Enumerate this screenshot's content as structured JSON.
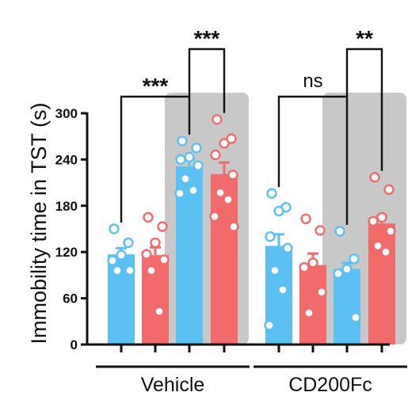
{
  "chart_data": {
    "type": "bar",
    "ylabel": "Immobility  time in TST (s)",
    "ylim": [
      0,
      300
    ],
    "yticks": [
      0,
      60,
      120,
      180,
      240,
      300
    ],
    "groups": [
      "Vehicle",
      "CD200Fc"
    ],
    "colors": {
      "blue": "#5bc0f2",
      "red": "#f26a6a",
      "shade": "#c8c8c8"
    },
    "bars": [
      {
        "group": 0,
        "color": "blue",
        "shaded": false,
        "mean": 117,
        "sem": 8,
        "points": [
          150,
          132,
          116,
          109,
          96,
          96
        ]
      },
      {
        "group": 0,
        "color": "red",
        "shaded": false,
        "mean": 116,
        "sem": 10,
        "points": [
          165,
          153,
          132,
          117,
          110,
          96,
          43
        ]
      },
      {
        "group": 0,
        "color": "blue",
        "shaded": true,
        "mean": 231,
        "sem": 9,
        "points": [
          264,
          255,
          243,
          240,
          232,
          215,
          200,
          196
        ]
      },
      {
        "group": 0,
        "color": "red",
        "shaded": true,
        "mean": 221,
        "sem": 15,
        "points": [
          292,
          267,
          261,
          246,
          220,
          197,
          188,
          166,
          153
        ]
      },
      {
        "group": 1,
        "color": "blue",
        "shaded": false,
        "mean": 128,
        "sem": 15,
        "points": [
          196,
          178,
          173,
          140,
          125,
          96,
          71,
          25
        ]
      },
      {
        "group": 1,
        "color": "red",
        "shaded": false,
        "mean": 103,
        "sem": 15,
        "points": [
          163,
          148,
          106,
          100,
          68,
          41
        ]
      },
      {
        "group": 1,
        "color": "blue",
        "shaded": true,
        "mean": 98,
        "sem": 8,
        "points": [
          147,
          111,
          98,
          92,
          35
        ]
      },
      {
        "group": 1,
        "color": "red",
        "shaded": true,
        "mean": 157,
        "sem": 10,
        "points": [
          217,
          201,
          165,
          160,
          147,
          128,
          120
        ]
      }
    ],
    "comparisons": [
      {
        "from_bar": 0,
        "to_bar": 2,
        "label": "***",
        "level": 0
      },
      {
        "from_bar": 2,
        "to_bar": 3,
        "label": "***",
        "level": 1
      },
      {
        "from_bar": 4,
        "to_bar": 6,
        "label": "ns",
        "level": 0
      },
      {
        "from_bar": 6,
        "to_bar": 7,
        "label": "**",
        "level": 1
      }
    ]
  }
}
